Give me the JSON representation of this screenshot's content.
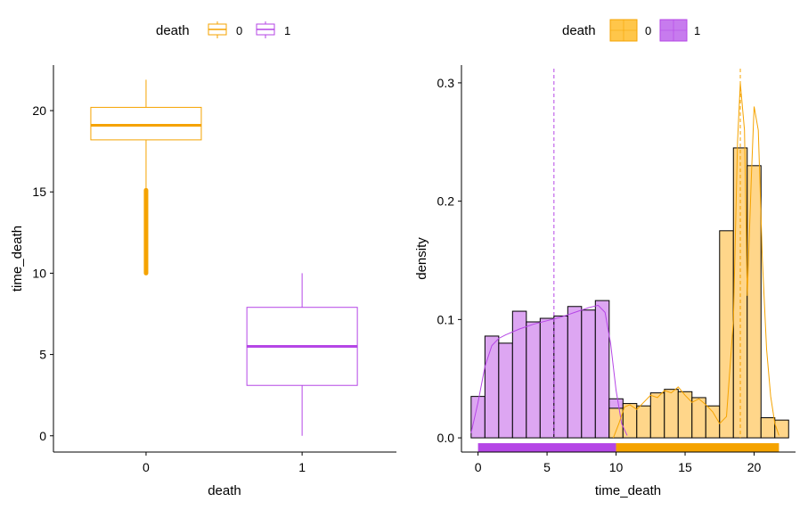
{
  "colors": {
    "death0": "#F5A300",
    "death1": "#B546E6",
    "death0_fill": "#FFD68A",
    "death1_fill": "#DDA6F2",
    "axis": "#000000"
  },
  "chart_data": [
    {
      "type": "box",
      "legend": {
        "title": "death",
        "labels": [
          "0",
          "1"
        ],
        "position": "top"
      },
      "xlabel": "death",
      "ylabel": "time_death",
      "categories": [
        "0",
        "1"
      ],
      "ylim": [
        -1.0,
        22.8
      ],
      "yticks": [
        0,
        5,
        10,
        15,
        20
      ],
      "ytick_labels": [
        "0",
        "5",
        "10",
        "15",
        "20"
      ],
      "boxes": [
        {
          "category": "0",
          "lower_whisker": 15.2,
          "q1": 18.2,
          "median": 19.1,
          "q3": 20.2,
          "upper_whisker": 21.9,
          "outliers_from": 10.0,
          "outliers_to": 15.1
        },
        {
          "category": "1",
          "lower_whisker": 0.0,
          "q1": 3.1,
          "median": 5.5,
          "q3": 7.9,
          "upper_whisker": 10.0
        }
      ],
      "grid": false
    },
    {
      "type": "histogram",
      "legend": {
        "title": "death",
        "labels": [
          "0",
          "1"
        ],
        "position": "top"
      },
      "xlabel": "time_death",
      "ylabel": "density",
      "xlim": [
        -1.2,
        23.0
      ],
      "ylim": [
        -0.012,
        0.315
      ],
      "xticks": [
        0,
        5,
        10,
        15,
        20
      ],
      "xtick_labels": [
        "0",
        "5",
        "10",
        "15",
        "20"
      ],
      "yticks": [
        0.0,
        0.1,
        0.2,
        0.3
      ],
      "ytick_labels": [
        "0.0",
        "0.1",
        "0.2",
        "0.3"
      ],
      "bin_width": 1.0,
      "series": [
        {
          "name": "1",
          "bin_starts": [
            -0.5,
            0.5,
            1.5,
            2.5,
            3.5,
            4.5,
            5.5,
            6.5,
            7.5,
            8.5,
            9.5
          ],
          "values": [
            0.035,
            0.086,
            0.08,
            0.107,
            0.098,
            0.101,
            0.103,
            0.111,
            0.108,
            0.116,
            0.033
          ],
          "mean": 5.5,
          "density_curve": [
            [
              -0.5,
              0.004
            ],
            [
              0,
              0.03
            ],
            [
              0.5,
              0.06
            ],
            [
              1,
              0.078
            ],
            [
              1.5,
              0.084
            ],
            [
              2,
              0.087
            ],
            [
              3,
              0.092
            ],
            [
              4,
              0.096
            ],
            [
              5,
              0.099
            ],
            [
              6,
              0.102
            ],
            [
              7,
              0.106
            ],
            [
              8,
              0.11
            ],
            [
              8.7,
              0.112
            ],
            [
              9.2,
              0.106
            ],
            [
              9.6,
              0.08
            ],
            [
              10,
              0.04
            ],
            [
              10.4,
              0.012
            ],
            [
              10.8,
              0.002
            ]
          ]
        },
        {
          "name": "0",
          "bin_starts": [
            9.5,
            10.5,
            11.5,
            12.5,
            13.5,
            14.5,
            15.5,
            16.5,
            17.5,
            18.5,
            19.5,
            20.5,
            21.5
          ],
          "values": [
            0.025,
            0.029,
            0.027,
            0.038,
            0.041,
            0.039,
            0.034,
            0.027,
            0.175,
            0.245,
            0.23,
            0.017,
            0.015
          ],
          "mean": 19.0,
          "density_curve": [
            [
              9.8,
              0.0
            ],
            [
              10.2,
              0.012
            ],
            [
              10.6,
              0.026
            ],
            [
              11,
              0.028
            ],
            [
              11.5,
              0.024
            ],
            [
              12,
              0.03
            ],
            [
              12.5,
              0.036
            ],
            [
              13,
              0.034
            ],
            [
              13.5,
              0.04
            ],
            [
              14,
              0.038
            ],
            [
              14.5,
              0.043
            ],
            [
              15,
              0.036
            ],
            [
              15.5,
              0.03
            ],
            [
              16,
              0.033
            ],
            [
              16.5,
              0.028
            ],
            [
              17,
              0.022
            ],
            [
              17.5,
              0.012
            ],
            [
              18,
              0.018
            ],
            [
              18.5,
              0.1
            ],
            [
              18.8,
              0.25
            ],
            [
              19.0,
              0.3
            ],
            [
              19.3,
              0.26
            ],
            [
              19.5,
              0.12
            ],
            [
              19.8,
              0.22
            ],
            [
              20.0,
              0.28
            ],
            [
              20.3,
              0.26
            ],
            [
              20.6,
              0.15
            ],
            [
              20.9,
              0.075
            ],
            [
              21.2,
              0.035
            ],
            [
              21.5,
              0.012
            ],
            [
              21.8,
              0.002
            ]
          ]
        }
      ],
      "rug": [
        {
          "series": "1",
          "from": 0.0,
          "to": 10.0
        },
        {
          "series": "0",
          "from": 10.0,
          "to": 21.8
        }
      ],
      "grid": false
    }
  ]
}
